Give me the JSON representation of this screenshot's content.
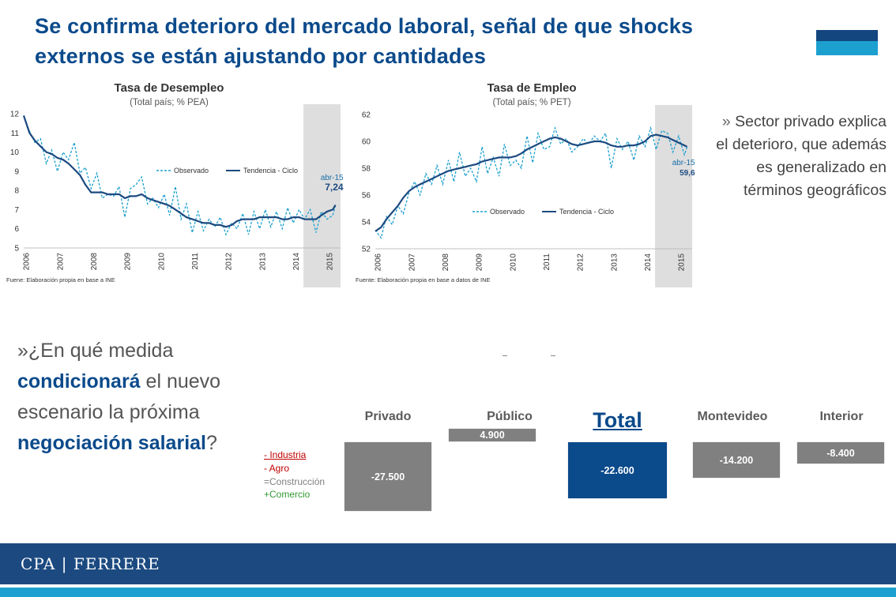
{
  "title": "Se confirma deterioro del mercado laboral, señal de que shocks externos se están ajustando por cantidades",
  "side_text": {
    "lead": "» ",
    "body": "Sector privado explica el deterioro, que además es generalizado en términos geográficos"
  },
  "question": {
    "p1": "»¿En qué medida ",
    "h1": "condicionará",
    "p2": " el nuevo escenario la próxima ",
    "h2": "negociación salarial",
    "p3": "?"
  },
  "footer_brand": "CPA | FERRERE",
  "colors": {
    "navy": "#0b4a8b",
    "trend": "#1c4a80",
    "observed": "#1ca0cf",
    "bar_gray": "#808080",
    "highlight_band": "#dedede"
  },
  "chart_data": [
    {
      "type": "line",
      "title": "Tasa de Desempleo",
      "subtitle": "(Total país; % PEA)",
      "source": "Fuene: Elaboración propia en base a INE",
      "x_ticks": [
        "2006",
        "2007",
        "2008",
        "2009",
        "2010",
        "2011",
        "2012",
        "2013",
        "2014",
        "2015"
      ],
      "y_ticks": [
        "5",
        "6",
        "7",
        "8",
        "9",
        "10",
        "11",
        "12"
      ],
      "ylim": [
        5,
        12
      ],
      "x_range": [
        2006,
        2015.4
      ],
      "highlight_range": [
        2014.3,
        2015.4
      ],
      "legend": [
        "Observado",
        "Tendencia - Ciclo"
      ],
      "legend_position": "center",
      "annotation": {
        "label": "abr-15",
        "value": "7,24",
        "x": 2015.25,
        "y": 7.24
      },
      "series": [
        {
          "name": "Observado",
          "style": "dashed",
          "x": [
            2006.0,
            2006.17,
            2006.33,
            2006.5,
            2006.67,
            2006.83,
            2007.0,
            2007.17,
            2007.33,
            2007.5,
            2007.67,
            2007.83,
            2008.0,
            2008.17,
            2008.33,
            2008.5,
            2008.67,
            2008.83,
            2009.0,
            2009.17,
            2009.33,
            2009.5,
            2009.67,
            2009.83,
            2010.0,
            2010.17,
            2010.33,
            2010.5,
            2010.67,
            2010.83,
            2011.0,
            2011.17,
            2011.33,
            2011.5,
            2011.67,
            2011.83,
            2012.0,
            2012.17,
            2012.33,
            2012.5,
            2012.67,
            2012.83,
            2013.0,
            2013.17,
            2013.33,
            2013.5,
            2013.67,
            2013.83,
            2014.0,
            2014.17,
            2014.33,
            2014.5,
            2014.67,
            2014.83,
            2015.0,
            2015.17,
            2015.25
          ],
          "y": [
            11.9,
            11.1,
            10.5,
            10.7,
            9.4,
            10.1,
            9.0,
            10.0,
            9.6,
            10.5,
            8.9,
            9.2,
            8.1,
            8.9,
            7.6,
            7.8,
            7.7,
            8.2,
            6.6,
            8.1,
            8.3,
            8.7,
            7.3,
            7.6,
            7.1,
            7.8,
            6.7,
            8.2,
            6.5,
            7.3,
            5.8,
            6.9,
            5.9,
            6.5,
            6.1,
            6.6,
            5.7,
            6.3,
            6.0,
            6.8,
            5.7,
            6.9,
            6.0,
            7.0,
            6.1,
            6.9,
            6.0,
            7.1,
            6.3,
            7.0,
            6.5,
            7.0,
            5.8,
            6.9,
            6.5,
            6.7,
            7.24
          ]
        },
        {
          "name": "Tendencia - Ciclo",
          "style": "solid",
          "x": [
            2006.0,
            2006.17,
            2006.33,
            2006.5,
            2006.67,
            2006.83,
            2007.0,
            2007.17,
            2007.33,
            2007.5,
            2007.67,
            2007.83,
            2008.0,
            2008.17,
            2008.33,
            2008.5,
            2008.67,
            2008.83,
            2009.0,
            2009.17,
            2009.33,
            2009.5,
            2009.67,
            2009.83,
            2010.0,
            2010.17,
            2010.33,
            2010.5,
            2010.67,
            2010.83,
            2011.0,
            2011.17,
            2011.33,
            2011.5,
            2011.67,
            2011.83,
            2012.0,
            2012.17,
            2012.33,
            2012.5,
            2012.67,
            2012.83,
            2013.0,
            2013.17,
            2013.33,
            2013.5,
            2013.67,
            2013.83,
            2014.0,
            2014.17,
            2014.33,
            2014.5,
            2014.67,
            2014.83,
            2015.0,
            2015.17,
            2015.25
          ],
          "y": [
            11.9,
            11.0,
            10.6,
            10.3,
            10.0,
            9.9,
            9.7,
            9.6,
            9.4,
            9.1,
            8.8,
            8.3,
            7.9,
            7.9,
            7.9,
            7.8,
            7.8,
            7.8,
            7.6,
            7.7,
            7.7,
            7.8,
            7.6,
            7.5,
            7.4,
            7.3,
            7.2,
            7.0,
            6.8,
            6.6,
            6.5,
            6.4,
            6.3,
            6.3,
            6.2,
            6.2,
            6.1,
            6.2,
            6.4,
            6.5,
            6.5,
            6.5,
            6.6,
            6.6,
            6.6,
            6.6,
            6.5,
            6.5,
            6.6,
            6.6,
            6.5,
            6.5,
            6.5,
            6.7,
            6.9,
            7.0,
            7.24
          ]
        }
      ]
    },
    {
      "type": "line",
      "title": "Tasa de Empleo",
      "subtitle": "(Total país; % PET)",
      "source": "Fuente: Elaboración propia en base a datos de INE",
      "x_ticks": [
        "2006",
        "2007",
        "2008",
        "2009",
        "2010",
        "2011",
        "2012",
        "2013",
        "2014",
        "2015"
      ],
      "y_ticks": [
        "52",
        "54",
        "56",
        "58",
        "60",
        "62"
      ],
      "ylim": [
        52,
        62
      ],
      "x_range": [
        2006,
        2015.4
      ],
      "highlight_range": [
        2014.3,
        2015.4
      ],
      "legend": [
        "Observado",
        "Tendencia - Ciclo"
      ],
      "legend_position": "bottom-center",
      "annotation": {
        "label": "abr-15",
        "value": "59,6",
        "x": 2015.25,
        "y": 59.6
      },
      "series": [
        {
          "name": "Observado",
          "style": "dashed",
          "x": [
            2006.0,
            2006.17,
            2006.33,
            2006.5,
            2006.67,
            2006.83,
            2007.0,
            2007.17,
            2007.33,
            2007.5,
            2007.67,
            2007.83,
            2008.0,
            2008.17,
            2008.33,
            2008.5,
            2008.67,
            2008.83,
            2009.0,
            2009.17,
            2009.33,
            2009.5,
            2009.67,
            2009.83,
            2010.0,
            2010.17,
            2010.33,
            2010.5,
            2010.67,
            2010.83,
            2011.0,
            2011.17,
            2011.33,
            2011.5,
            2011.67,
            2011.83,
            2012.0,
            2012.17,
            2012.33,
            2012.5,
            2012.67,
            2012.83,
            2013.0,
            2013.17,
            2013.33,
            2013.5,
            2013.67,
            2013.83,
            2014.0,
            2014.17,
            2014.33,
            2014.5,
            2014.67,
            2014.83,
            2015.0,
            2015.17,
            2015.25
          ],
          "y": [
            53.4,
            52.8,
            54.4,
            53.8,
            55.2,
            54.6,
            56.2,
            57.0,
            56.0,
            57.6,
            56.8,
            58.2,
            56.8,
            58.6,
            57.0,
            59.2,
            57.4,
            58.0,
            57.0,
            59.6,
            57.6,
            58.8,
            57.4,
            59.8,
            58.2,
            58.6,
            58.0,
            60.4,
            58.4,
            60.6,
            59.4,
            59.6,
            61.0,
            59.8,
            60.2,
            59.2,
            59.6,
            60.2,
            59.8,
            60.4,
            60.0,
            60.6,
            58.0,
            60.2,
            59.4,
            60.0,
            58.6,
            60.4,
            59.6,
            61.0,
            59.4,
            60.8,
            60.6,
            59.2,
            60.4,
            59.0,
            59.6
          ]
        },
        {
          "name": "Tendencia - Ciclo",
          "style": "solid",
          "x": [
            2006.0,
            2006.17,
            2006.33,
            2006.5,
            2006.67,
            2006.83,
            2007.0,
            2007.17,
            2007.33,
            2007.5,
            2007.67,
            2007.83,
            2008.0,
            2008.17,
            2008.33,
            2008.5,
            2008.67,
            2008.83,
            2009.0,
            2009.17,
            2009.33,
            2009.5,
            2009.67,
            2009.83,
            2010.0,
            2010.17,
            2010.33,
            2010.5,
            2010.67,
            2010.83,
            2011.0,
            2011.17,
            2011.33,
            2011.5,
            2011.67,
            2011.83,
            2012.0,
            2012.17,
            2012.33,
            2012.5,
            2012.67,
            2012.83,
            2013.0,
            2013.17,
            2013.33,
            2013.5,
            2013.67,
            2013.83,
            2014.0,
            2014.17,
            2014.33,
            2014.5,
            2014.67,
            2014.83,
            2015.0,
            2015.17,
            2015.25
          ],
          "y": [
            53.3,
            53.6,
            54.2,
            54.7,
            55.2,
            55.8,
            56.3,
            56.6,
            56.8,
            57.0,
            57.2,
            57.4,
            57.6,
            57.8,
            57.9,
            58.0,
            58.1,
            58.2,
            58.3,
            58.5,
            58.6,
            58.7,
            58.8,
            58.8,
            58.8,
            58.9,
            59.1,
            59.4,
            59.6,
            59.8,
            60.0,
            60.2,
            60.3,
            60.2,
            60.0,
            59.8,
            59.7,
            59.8,
            59.9,
            60.0,
            60.0,
            59.9,
            59.7,
            59.6,
            59.6,
            59.7,
            59.7,
            59.8,
            60.0,
            60.4,
            60.5,
            60.4,
            60.3,
            60.1,
            59.9,
            59.7,
            59.6
          ]
        }
      ]
    },
    {
      "type": "bar",
      "title": "",
      "orientation": "floating",
      "categories": [
        "Privado",
        "Público",
        "Total",
        "Montevideo",
        "Interior"
      ],
      "values": [
        -27500,
        4900,
        -22600,
        -14200,
        -8400
      ],
      "labels": [
        "-27.500",
        "4.900",
        "-22.600",
        "-14.200",
        "-8.400"
      ],
      "highlight": "Total"
    }
  ],
  "sectors": [
    {
      "text": "- Industria",
      "color": "#c00000",
      "underline": true
    },
    {
      "text": "- Agro",
      "color": "#c00000",
      "underline": false
    },
    {
      "text": "=Construcción",
      "color": "#808080",
      "underline": false
    },
    {
      "text": "+Comercio",
      "color": "#339933",
      "underline": false
    }
  ]
}
